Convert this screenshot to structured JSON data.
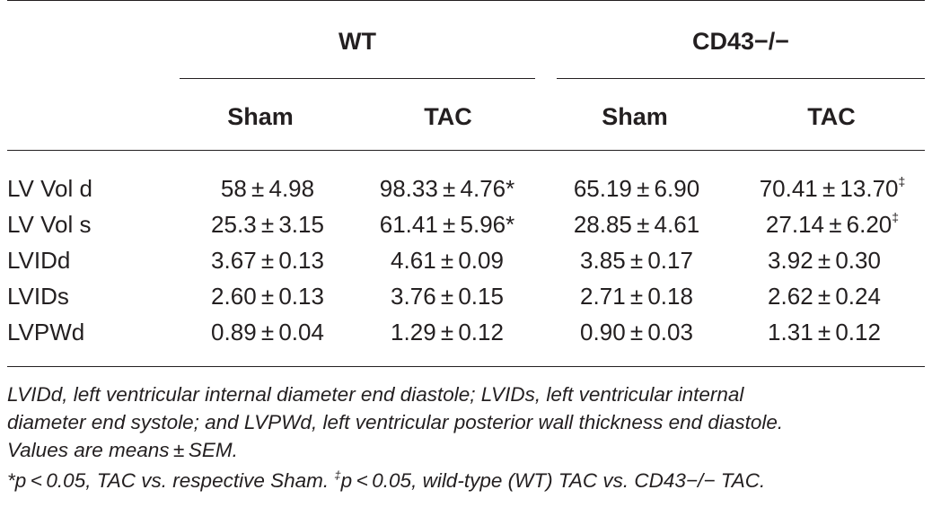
{
  "table": {
    "groups": [
      {
        "label": "WT"
      },
      {
        "label": "CD43−/−"
      }
    ],
    "subheaders": [
      "Sham",
      "TAC",
      "Sham",
      "TAC"
    ],
    "rows": [
      {
        "label": "LV Vol d",
        "cells": [
          {
            "value": "58 ± 4.98",
            "mark": ""
          },
          {
            "value": "98.33 ± 4.76*",
            "mark": ""
          },
          {
            "value": "65.19 ± 6.90",
            "mark": ""
          },
          {
            "value": "70.41 ± 13.70",
            "mark": "‡"
          }
        ]
      },
      {
        "label": "LV Vol s",
        "cells": [
          {
            "value": "25.3 ± 3.15",
            "mark": ""
          },
          {
            "value": "61.41 ± 5.96*",
            "mark": ""
          },
          {
            "value": "28.85 ± 4.61",
            "mark": ""
          },
          {
            "value": "27.14 ± 6.20",
            "mark": "‡"
          }
        ]
      },
      {
        "label": "LVIDd",
        "cells": [
          {
            "value": "3.67 ± 0.13",
            "mark": ""
          },
          {
            "value": "4.61 ± 0.09",
            "mark": ""
          },
          {
            "value": "3.85 ± 0.17",
            "mark": ""
          },
          {
            "value": "3.92 ± 0.30",
            "mark": ""
          }
        ]
      },
      {
        "label": "LVIDs",
        "cells": [
          {
            "value": "2.60 ± 0.13",
            "mark": ""
          },
          {
            "value": "3.76 ± 0.15",
            "mark": ""
          },
          {
            "value": "2.71 ± 0.18",
            "mark": ""
          },
          {
            "value": "2.62 ± 0.24",
            "mark": ""
          }
        ]
      },
      {
        "label": "LVPWd",
        "cells": [
          {
            "value": "0.89 ± 0.04",
            "mark": ""
          },
          {
            "value": "1.29 ± 0.12",
            "mark": ""
          },
          {
            "value": "0.90 ± 0.03",
            "mark": ""
          },
          {
            "value": "1.31 ± 0.12",
            "mark": ""
          }
        ]
      }
    ]
  },
  "footnotes": {
    "abbrev_line1": "LVIDd, left ventricular internal diameter end diastole; LVIDs, left ventricular internal",
    "abbrev_line2": "diameter end systole; and LVPWd, left ventricular posterior wall thickness end diastole.",
    "values_note": "Values are means ± SEM.",
    "sig_part1": "*p < 0.05, TAC vs. respective Sham. ",
    "sig_mark": "‡",
    "sig_part2": "p < 0.05, wild-type (WT) TAC vs. CD43−/− TAC."
  }
}
